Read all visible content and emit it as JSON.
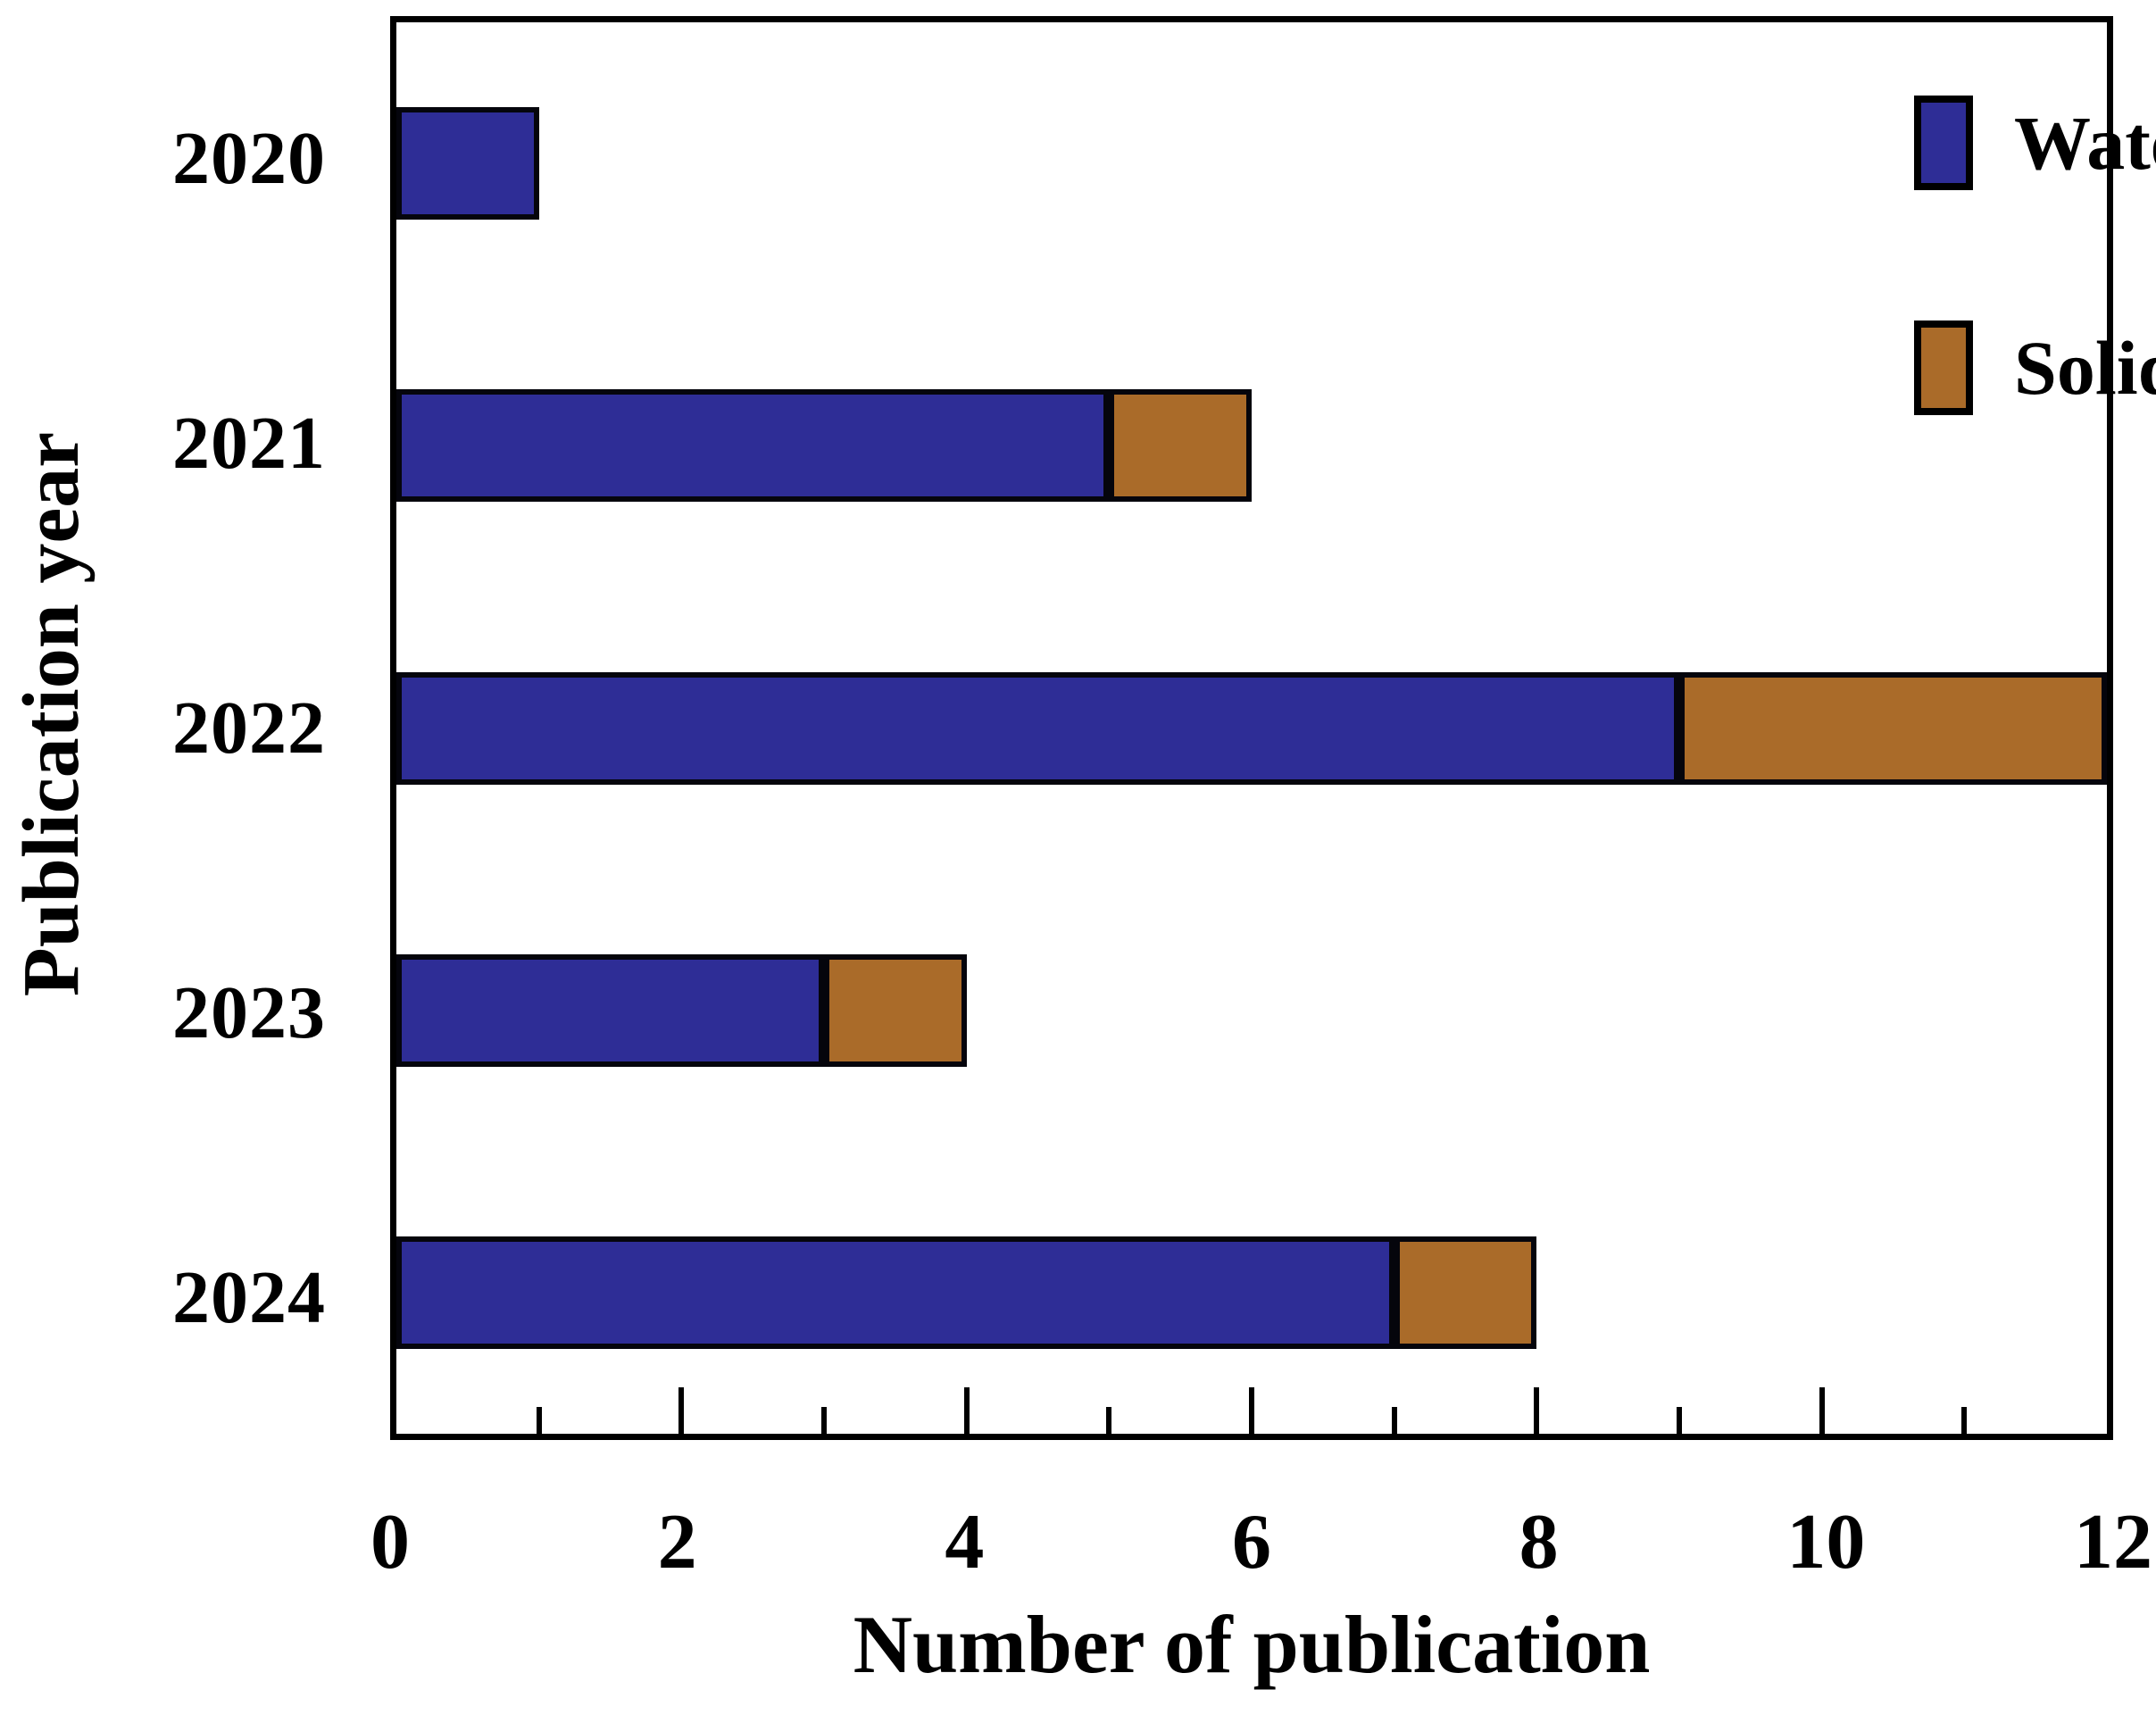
{
  "chart_data": {
    "type": "bar",
    "orientation": "horizontal",
    "stacked": true,
    "title": "",
    "xlabel": "Number of publication",
    "ylabel": "Publication year",
    "categories": [
      "2020",
      "2021",
      "2022",
      "2023",
      "2024"
    ],
    "series": [
      {
        "name": "Water matrix",
        "color": "#2E2D96",
        "values": [
          1,
          5,
          9,
          3,
          7
        ]
      },
      {
        "name": "Solid matrix",
        "color": "#AA6B29",
        "values": [
          0,
          1,
          3,
          1,
          1
        ]
      }
    ],
    "totals": [
      1,
      6,
      12,
      4,
      8
    ],
    "xlim": [
      0,
      12
    ],
    "x_major_ticks": [
      0,
      2,
      4,
      6,
      8,
      10,
      12
    ],
    "x_minor_tick_step": 1,
    "ticks_inside": true,
    "grid": false,
    "legend_position": "top-right-inside",
    "bar_outline_color": "#05050c",
    "frame_color": "#000000"
  }
}
